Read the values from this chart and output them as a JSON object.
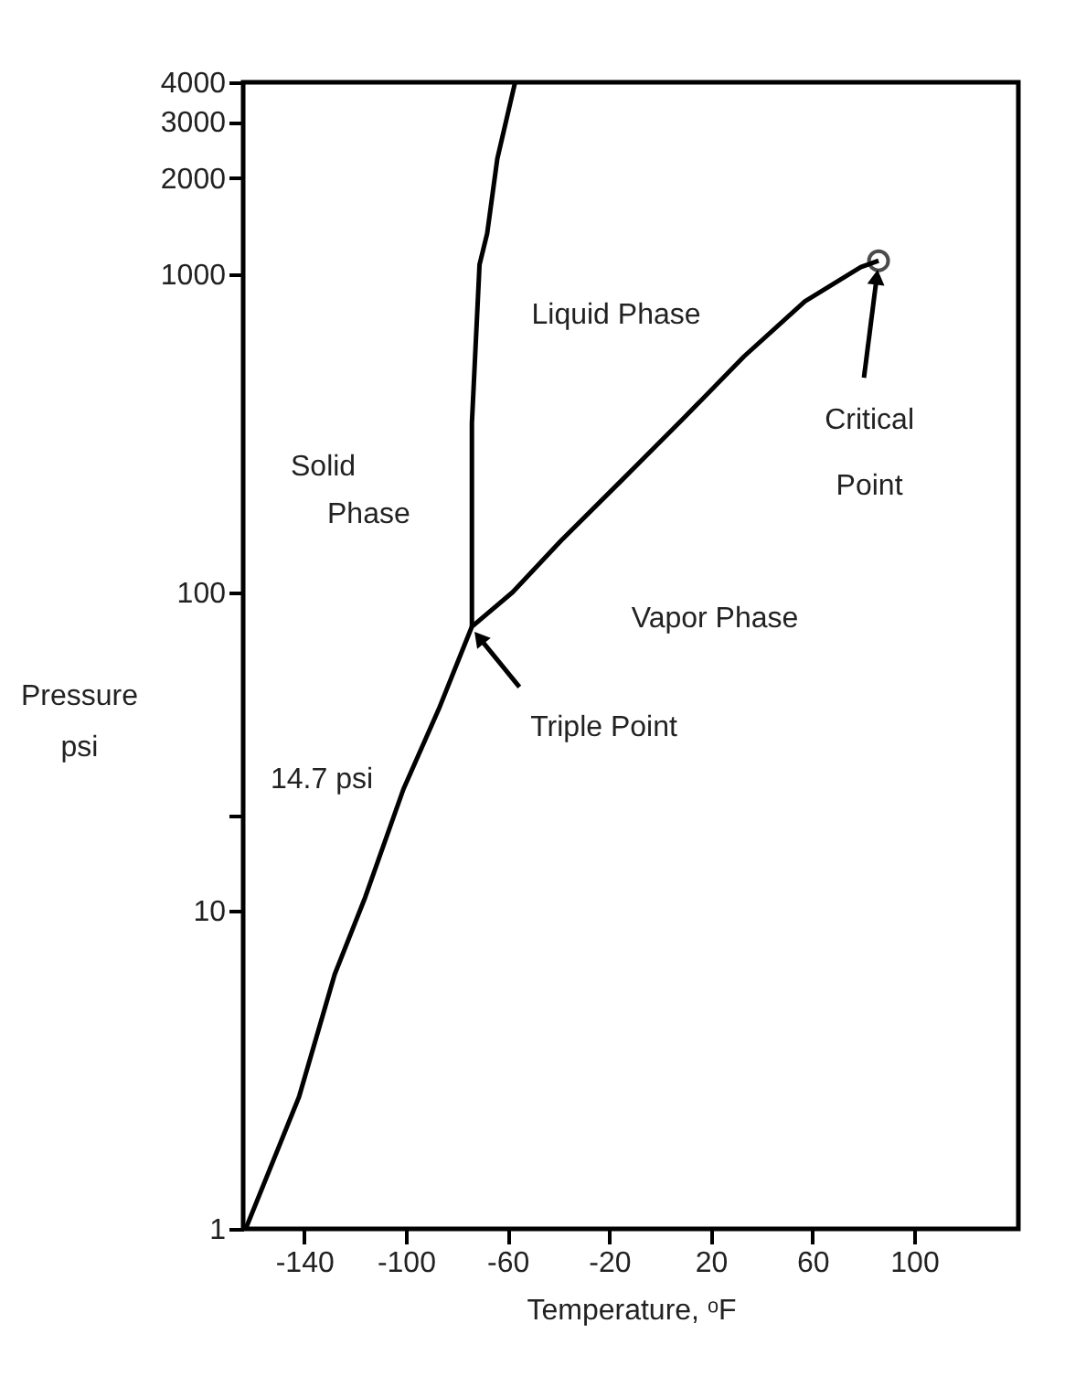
{
  "chart_data": {
    "type": "line",
    "xlabel": "Temperature, ᵒF",
    "ylabel": "Pressure\npsi",
    "log": "y",
    "xlim": [
      -164,
      141
    ],
    "ylim": [
      1,
      4000
    ],
    "xticks": [
      -140,
      -100,
      -60,
      -20,
      20,
      60,
      100
    ],
    "yticks": [
      1,
      10,
      {
        "value": 20,
        "label": null
      },
      100,
      1000,
      2000,
      3000,
      4000
    ],
    "grid": false,
    "line_style": "solid",
    "series": [
      {
        "color": "#000000",
        "x": [
          -163,
          -142,
          -128,
          -116,
          -101,
          -87,
          -74,
          -58,
          -39,
          -15,
          9,
          33,
          57,
          79,
          86
        ],
        "values": [
          1,
          2.6,
          6.3,
          11,
          24,
          43,
          78,
          100,
          145,
          225,
          350,
          550,
          820,
          1050,
          1100
        ]
      },
      {
        "color": "#000000",
        "x": [
          -74,
          -74,
          -71,
          -68,
          -64,
          -57
        ],
        "values": [
          78,
          340,
          1070,
          1340,
          2300,
          4000
        ]
      },
      {
        "type": "scatter",
        "color": "#000000",
        "marker": "circle",
        "x": [
          86
        ],
        "values": [
          1100
        ]
      }
    ],
    "annotations": [
      {
        "text": "Triple Point",
        "x": -74,
        "y": 78
      },
      {
        "text": "Critical\nPoint",
        "x": 86,
        "y": 1100
      },
      "Liquid Phase",
      "Solid\nPhase",
      "Vapor Phase",
      "14.7 psi"
    ]
  }
}
